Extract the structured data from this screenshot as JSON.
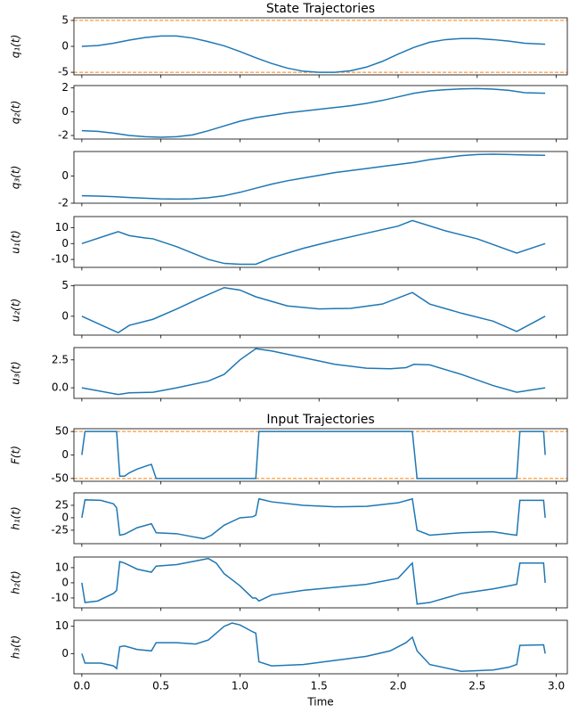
{
  "chart_data": [
    {
      "type": "line",
      "title": "State Trajectories",
      "ylabel": "q₁(t)",
      "color": "#1f77b4",
      "x": [
        0,
        0.1,
        0.2,
        0.3,
        0.4,
        0.5,
        0.6,
        0.7,
        0.8,
        0.9,
        1.0,
        1.1,
        1.2,
        1.3,
        1.4,
        1.5,
        1.6,
        1.7,
        1.8,
        1.9,
        2.0,
        2.1,
        2.2,
        2.3,
        2.4,
        2.5,
        2.6,
        2.7,
        2.8,
        2.93
      ],
      "values": [
        0,
        0.15,
        0.6,
        1.2,
        1.7,
        2.0,
        2.0,
        1.6,
        0.9,
        0.1,
        -1.0,
        -2.2,
        -3.3,
        -4.2,
        -4.8,
        -5.0,
        -5.0,
        -4.7,
        -4.0,
        -2.9,
        -1.5,
        -0.2,
        0.8,
        1.3,
        1.5,
        1.5,
        1.3,
        1.0,
        0.6,
        0.4
      ],
      "bounds": [
        -5,
        5
      ],
      "bounds_color": "#ff7f0e",
      "xlim": [
        -0.05,
        3.07
      ],
      "xticks": [
        0,
        0.5,
        1,
        1.5,
        2,
        2.5,
        3
      ],
      "ylim": [
        -5.5,
        5.5
      ],
      "yticks": [
        -5,
        0,
        5
      ]
    },
    {
      "type": "line",
      "ylabel": "q₂(t)",
      "color": "#1f77b4",
      "x": [
        0,
        0.1,
        0.2,
        0.3,
        0.4,
        0.5,
        0.6,
        0.7,
        0.8,
        0.9,
        1.0,
        1.1,
        1.2,
        1.3,
        1.4,
        1.5,
        1.6,
        1.7,
        1.8,
        1.9,
        2.0,
        2.1,
        2.2,
        2.3,
        2.4,
        2.5,
        2.6,
        2.7,
        2.8,
        2.93
      ],
      "values": [
        -1.6,
        -1.65,
        -1.8,
        -2.0,
        -2.1,
        -2.15,
        -2.1,
        -1.95,
        -1.6,
        -1.2,
        -0.8,
        -0.5,
        -0.3,
        -0.1,
        0.05,
        0.2,
        0.35,
        0.5,
        0.7,
        0.95,
        1.25,
        1.55,
        1.75,
        1.85,
        1.92,
        1.95,
        1.9,
        1.8,
        1.6,
        1.55
      ],
      "xlim": [
        -0.05,
        3.07
      ],
      "xticks": [
        0,
        0.5,
        1,
        1.5,
        2,
        2.5,
        3
      ],
      "ylim": [
        -2.3,
        2.2
      ],
      "yticks": [
        -2,
        0,
        2
      ]
    },
    {
      "type": "line",
      "ylabel": "q₃(t)",
      "color": "#1f77b4",
      "x": [
        0,
        0.1,
        0.2,
        0.3,
        0.4,
        0.5,
        0.6,
        0.7,
        0.8,
        0.9,
        1.0,
        1.1,
        1.2,
        1.3,
        1.4,
        1.5,
        1.6,
        1.7,
        1.8,
        1.9,
        2.0,
        2.1,
        2.2,
        2.3,
        2.4,
        2.5,
        2.6,
        2.7,
        2.8,
        2.93
      ],
      "values": [
        -1.45,
        -1.48,
        -1.52,
        -1.58,
        -1.63,
        -1.68,
        -1.7,
        -1.68,
        -1.6,
        -1.45,
        -1.2,
        -0.9,
        -0.6,
        -0.35,
        -0.15,
        0.05,
        0.25,
        0.4,
        0.55,
        0.7,
        0.85,
        1.0,
        1.2,
        1.35,
        1.5,
        1.58,
        1.6,
        1.58,
        1.55,
        1.52
      ],
      "xlim": [
        -0.05,
        3.07
      ],
      "xticks": [
        0,
        0.5,
        1,
        1.5,
        2,
        2.5,
        3
      ],
      "ylim": [
        -2.0,
        1.8
      ],
      "yticks": [
        -2,
        0
      ]
    },
    {
      "type": "line",
      "ylabel": "u₁(t)",
      "color": "#1f77b4",
      "x": [
        0,
        0.23,
        0.3,
        0.4,
        0.45,
        0.6,
        0.7,
        0.8,
        0.9,
        1.0,
        1.1,
        1.2,
        1.4,
        1.6,
        1.8,
        2.0,
        2.09,
        2.3,
        2.5,
        2.75,
        2.93
      ],
      "values": [
        0,
        7.5,
        5,
        3.5,
        3,
        -2,
        -6,
        -10,
        -12.5,
        -13,
        -13,
        -9,
        -3,
        2,
        6.5,
        11,
        14.5,
        8,
        3,
        -6,
        0
      ],
      "xlim": [
        -0.05,
        3.07
      ],
      "xticks": [
        0,
        0.5,
        1,
        1.5,
        2,
        2.5,
        3
      ],
      "ylim": [
        -15,
        17
      ],
      "yticks": [
        -10,
        0,
        10
      ]
    },
    {
      "type": "line",
      "ylabel": "u₂(t)",
      "color": "#1f77b4",
      "x": [
        0,
        0.23,
        0.3,
        0.45,
        0.6,
        0.75,
        0.9,
        1.0,
        1.1,
        1.3,
        1.5,
        1.7,
        1.9,
        2.09,
        2.2,
        2.4,
        2.6,
        2.75,
        2.93
      ],
      "values": [
        0,
        -2.7,
        -1.5,
        -0.5,
        1.2,
        3,
        4.7,
        4.3,
        3.2,
        1.7,
        1.2,
        1.3,
        2.0,
        3.9,
        2.0,
        0.5,
        -0.8,
        -2.5,
        0
      ],
      "xlim": [
        -0.05,
        3.07
      ],
      "xticks": [
        0,
        0.5,
        1,
        1.5,
        2,
        2.5,
        3
      ],
      "ylim": [
        -3.1,
        5.1
      ],
      "yticks": [
        0,
        5
      ]
    },
    {
      "type": "line",
      "ylabel": "u₃(t)",
      "color": "#1f77b4",
      "x": [
        0,
        0.23,
        0.3,
        0.45,
        0.6,
        0.8,
        0.9,
        1.0,
        1.1,
        1.2,
        1.4,
        1.6,
        1.8,
        1.95,
        2.05,
        2.1,
        2.2,
        2.4,
        2.6,
        2.75,
        2.93
      ],
      "values": [
        0,
        -0.6,
        -0.45,
        -0.4,
        0,
        0.6,
        1.2,
        2.5,
        3.5,
        3.3,
        2.7,
        2.1,
        1.75,
        1.7,
        1.8,
        2.1,
        2.05,
        1.2,
        0.2,
        -0.4,
        0
      ],
      "xlim": [
        -0.05,
        3.07
      ],
      "xticks": [
        0,
        0.5,
        1,
        1.5,
        2,
        2.5,
        3
      ],
      "ylim": [
        -0.95,
        3.6
      ],
      "yticks": [
        {
          "value": 0,
          "label": "0.0"
        },
        {
          "value": 2.5,
          "label": "2.5"
        }
      ]
    },
    {
      "type": "line",
      "title": "Input Trajectories",
      "ylabel": "F(t)",
      "color": "#1f77b4",
      "x": [
        0,
        0.02,
        0.22,
        0.24,
        0.27,
        0.3,
        0.35,
        0.42,
        0.44,
        0.47,
        1.1,
        1.12,
        2.09,
        2.12,
        2.75,
        2.77,
        2.92,
        2.93
      ],
      "values": [
        0,
        50,
        50,
        -45,
        -45,
        -38,
        -30,
        -22,
        -20,
        -50,
        -50,
        50,
        50,
        -50,
        -50,
        50,
        50,
        0
      ],
      "bounds": [
        -50,
        50
      ],
      "bounds_color": "#ff7f0e",
      "xlim": [
        -0.05,
        3.07
      ],
      "xticks": [
        0,
        0.5,
        1,
        1.5,
        2,
        2.5,
        3
      ],
      "ylim": [
        -56,
        56
      ],
      "yticks": [
        -50,
        0,
        50
      ]
    },
    {
      "type": "line",
      "ylabel": "h₁(t)",
      "color": "#1f77b4",
      "x": [
        0,
        0.02,
        0.12,
        0.2,
        0.22,
        0.24,
        0.27,
        0.35,
        0.44,
        0.47,
        0.6,
        0.7,
        0.77,
        0.82,
        0.9,
        1.0,
        1.08,
        1.1,
        1.12,
        1.2,
        1.4,
        1.6,
        1.8,
        2.0,
        2.08,
        2.09,
        2.12,
        2.2,
        2.4,
        2.6,
        2.7,
        2.75,
        2.77,
        2.92,
        2.93
      ],
      "values": [
        0,
        36,
        35,
        28,
        20,
        -35,
        -33,
        -20,
        -12,
        -30,
        -32,
        -38,
        -42,
        -35,
        -15,
        0,
        2,
        5,
        38,
        32,
        25,
        22,
        23,
        30,
        37,
        38,
        -25,
        -35,
        -30,
        -28,
        -33,
        -35,
        35,
        35,
        0
      ],
      "xlim": [
        -0.05,
        3.07
      ],
      "xticks": [
        0,
        0.5,
        1,
        1.5,
        2,
        2.5,
        3
      ],
      "ylim": [
        -52,
        50
      ],
      "yticks": [
        -25,
        0,
        25
      ]
    },
    {
      "type": "line",
      "ylabel": "h₂(t)",
      "color": "#1f77b4",
      "x": [
        0,
        0.02,
        0.1,
        0.2,
        0.22,
        0.24,
        0.27,
        0.35,
        0.44,
        0.47,
        0.6,
        0.75,
        0.8,
        0.85,
        0.9,
        1.0,
        1.08,
        1.1,
        1.12,
        1.2,
        1.4,
        1.6,
        1.8,
        2.0,
        2.08,
        2.09,
        2.12,
        2.2,
        2.4,
        2.6,
        2.7,
        2.75,
        2.77,
        2.92,
        2.93
      ],
      "values": [
        0,
        -13,
        -12,
        -7,
        -5,
        14,
        13,
        9,
        7,
        11,
        12,
        15,
        16,
        13,
        6,
        -2,
        -10,
        -10,
        -12,
        -8,
        -5,
        -3,
        -1,
        3,
        12,
        13,
        -14,
        -13,
        -7,
        -4,
        -2,
        -1,
        13,
        13,
        0
      ],
      "xlim": [
        -0.05,
        3.07
      ],
      "xticks": [
        0,
        0.5,
        1,
        1.5,
        2,
        2.5,
        3
      ],
      "ylim": [
        -16.5,
        17
      ],
      "yticks": [
        -10,
        0,
        10
      ]
    },
    {
      "type": "line",
      "ylabel": "h₃(t)",
      "xlabel": "Time",
      "color": "#1f77b4",
      "x": [
        0,
        0.02,
        0.12,
        0.2,
        0.22,
        0.24,
        0.27,
        0.35,
        0.44,
        0.47,
        0.6,
        0.72,
        0.8,
        0.9,
        0.95,
        1.0,
        1.08,
        1.1,
        1.12,
        1.2,
        1.4,
        1.6,
        1.8,
        1.95,
        2.05,
        2.09,
        2.12,
        2.2,
        2.4,
        2.6,
        2.7,
        2.75,
        2.77,
        2.92,
        2.93
      ],
      "values": [
        0,
        -3.5,
        -3.5,
        -4.5,
        -5.5,
        2.5,
        2.8,
        1.5,
        1,
        4,
        4,
        3.5,
        5,
        10,
        11.2,
        10.5,
        8,
        7.5,
        -3,
        -4.5,
        -4,
        -2.5,
        -1,
        1,
        4,
        6,
        1,
        -4,
        -6.5,
        -6,
        -5,
        -4,
        3,
        3.2,
        0
      ],
      "xlim": [
        -0.05,
        3.07
      ],
      "xticks": [
        {
          "value": 0,
          "label": "0.0"
        },
        {
          "value": 0.5,
          "label": "0.5"
        },
        {
          "value": 1,
          "label": "1.0"
        },
        {
          "value": 1.5,
          "label": "1.5"
        },
        {
          "value": 2,
          "label": "2.0"
        },
        {
          "value": 2.5,
          "label": "2.5"
        },
        {
          "value": 3,
          "label": "3.0"
        }
      ],
      "ylim": [
        -7.4,
        12.2
      ],
      "yticks": [
        0,
        10
      ]
    }
  ]
}
